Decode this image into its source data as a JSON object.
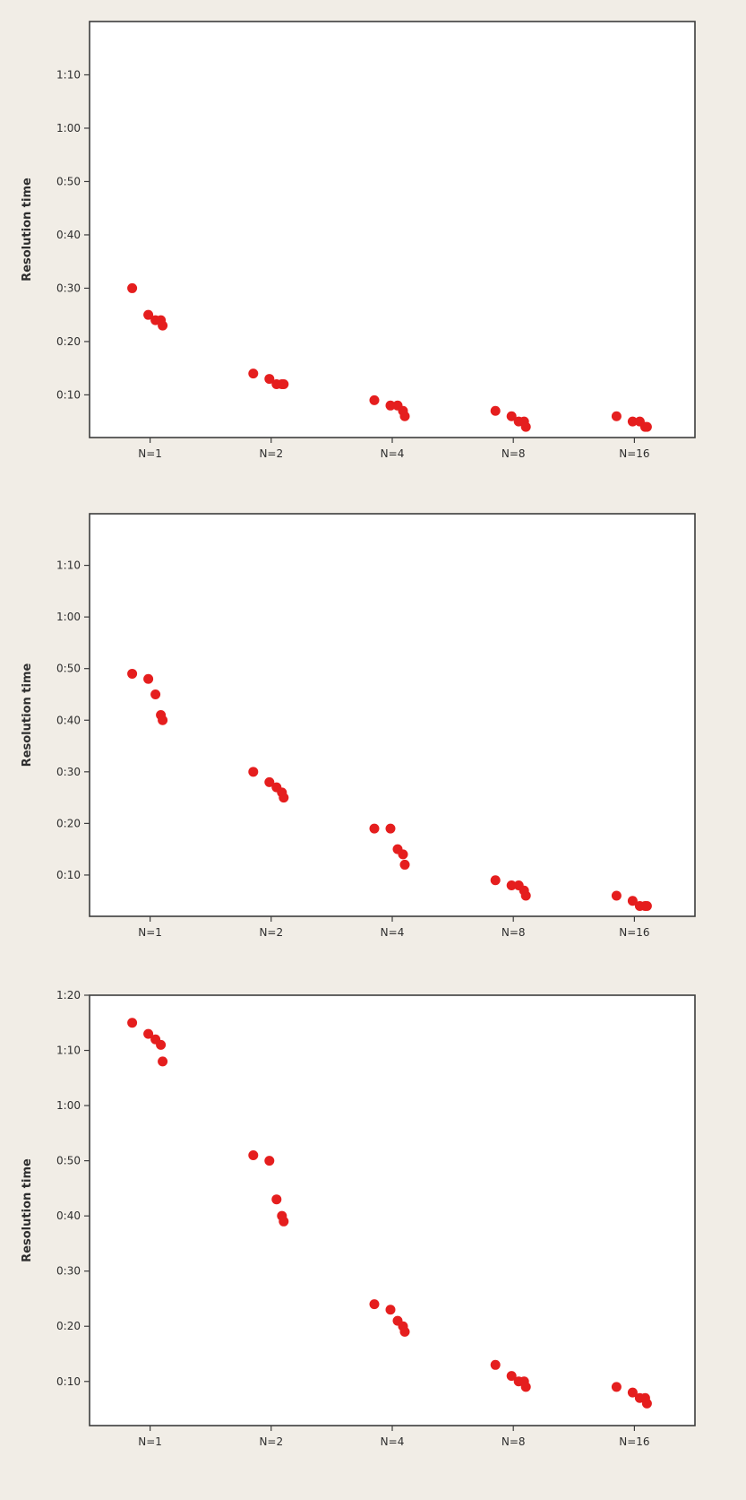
{
  "colors": {
    "point": "#e51e1e",
    "background": "#f1ede6",
    "plot_background": "#ffffff",
    "axis": "#3d3d3d"
  },
  "chart_data": [
    {
      "type": "scatter",
      "ylabel": "Resolution time",
      "y_unit": "seconds",
      "categories": [
        "N=1",
        "N=2",
        "N=4",
        "N=8",
        "N=16"
      ],
      "y_ticks": [
        10,
        20,
        30,
        40,
        50,
        60,
        70
      ],
      "y_tick_labels": [
        "0:10",
        "0:20",
        "0:30",
        "0:40",
        "0:50",
        "1:00",
        "1:10"
      ],
      "ylim": [
        2,
        80
      ],
      "grid": false,
      "points": [
        {
          "category": "N=1",
          "y": 30
        },
        {
          "category": "N=1",
          "y": 25
        },
        {
          "category": "N=1",
          "y": 24
        },
        {
          "category": "N=1",
          "y": 24
        },
        {
          "category": "N=1",
          "y": 23
        },
        {
          "category": "N=2",
          "y": 14
        },
        {
          "category": "N=2",
          "y": 13
        },
        {
          "category": "N=2",
          "y": 12
        },
        {
          "category": "N=2",
          "y": 12
        },
        {
          "category": "N=2",
          "y": 12
        },
        {
          "category": "N=4",
          "y": 9
        },
        {
          "category": "N=4",
          "y": 8
        },
        {
          "category": "N=4",
          "y": 8
        },
        {
          "category": "N=4",
          "y": 7
        },
        {
          "category": "N=4",
          "y": 6
        },
        {
          "category": "N=8",
          "y": 7
        },
        {
          "category": "N=8",
          "y": 6
        },
        {
          "category": "N=8",
          "y": 5
        },
        {
          "category": "N=8",
          "y": 5
        },
        {
          "category": "N=8",
          "y": 4
        },
        {
          "category": "N=16",
          "y": 6
        },
        {
          "category": "N=16",
          "y": 5
        },
        {
          "category": "N=16",
          "y": 5
        },
        {
          "category": "N=16",
          "y": 4
        },
        {
          "category": "N=16",
          "y": 4
        }
      ]
    },
    {
      "type": "scatter",
      "ylabel": "Resolution time",
      "y_unit": "seconds",
      "categories": [
        "N=1",
        "N=2",
        "N=4",
        "N=8",
        "N=16"
      ],
      "y_ticks": [
        10,
        20,
        30,
        40,
        50,
        60,
        70
      ],
      "y_tick_labels": [
        "0:10",
        "0:20",
        "0:30",
        "0:40",
        "0:50",
        "1:00",
        "1:10"
      ],
      "ylim": [
        2,
        80
      ],
      "grid": false,
      "points": [
        {
          "category": "N=1",
          "y": 49
        },
        {
          "category": "N=1",
          "y": 48
        },
        {
          "category": "N=1",
          "y": 45
        },
        {
          "category": "N=1",
          "y": 41
        },
        {
          "category": "N=1",
          "y": 40
        },
        {
          "category": "N=2",
          "y": 30
        },
        {
          "category": "N=2",
          "y": 28
        },
        {
          "category": "N=2",
          "y": 27
        },
        {
          "category": "N=2",
          "y": 26
        },
        {
          "category": "N=2",
          "y": 25
        },
        {
          "category": "N=4",
          "y": 19
        },
        {
          "category": "N=4",
          "y": 19
        },
        {
          "category": "N=4",
          "y": 15
        },
        {
          "category": "N=4",
          "y": 14
        },
        {
          "category": "N=4",
          "y": 12
        },
        {
          "category": "N=8",
          "y": 9
        },
        {
          "category": "N=8",
          "y": 8
        },
        {
          "category": "N=8",
          "y": 8
        },
        {
          "category": "N=8",
          "y": 7
        },
        {
          "category": "N=8",
          "y": 6
        },
        {
          "category": "N=16",
          "y": 6
        },
        {
          "category": "N=16",
          "y": 5
        },
        {
          "category": "N=16",
          "y": 4
        },
        {
          "category": "N=16",
          "y": 4
        },
        {
          "category": "N=16",
          "y": 4
        }
      ]
    },
    {
      "type": "scatter",
      "ylabel": "Resolution time",
      "y_unit": "seconds",
      "categories": [
        "N=1",
        "N=2",
        "N=4",
        "N=8",
        "N=16"
      ],
      "y_ticks": [
        10,
        20,
        30,
        40,
        50,
        60,
        70,
        80
      ],
      "y_tick_labels": [
        "0:10",
        "0:20",
        "0:30",
        "0:40",
        "0:50",
        "1:00",
        "1:10",
        "1:20"
      ],
      "ylim": [
        2,
        80
      ],
      "grid": false,
      "points": [
        {
          "category": "N=1",
          "y": 75
        },
        {
          "category": "N=1",
          "y": 73
        },
        {
          "category": "N=1",
          "y": 72
        },
        {
          "category": "N=1",
          "y": 71
        },
        {
          "category": "N=1",
          "y": 68
        },
        {
          "category": "N=2",
          "y": 51
        },
        {
          "category": "N=2",
          "y": 50
        },
        {
          "category": "N=2",
          "y": 43
        },
        {
          "category": "N=2",
          "y": 40
        },
        {
          "category": "N=2",
          "y": 39
        },
        {
          "category": "N=4",
          "y": 24
        },
        {
          "category": "N=4",
          "y": 23
        },
        {
          "category": "N=4",
          "y": 21
        },
        {
          "category": "N=4",
          "y": 20
        },
        {
          "category": "N=4",
          "y": 19
        },
        {
          "category": "N=8",
          "y": 13
        },
        {
          "category": "N=8",
          "y": 11
        },
        {
          "category": "N=8",
          "y": 10
        },
        {
          "category": "N=8",
          "y": 10
        },
        {
          "category": "N=8",
          "y": 9
        },
        {
          "category": "N=16",
          "y": 9
        },
        {
          "category": "N=16",
          "y": 8
        },
        {
          "category": "N=16",
          "y": 7
        },
        {
          "category": "N=16",
          "y": 7
        },
        {
          "category": "N=16",
          "y": 6
        }
      ]
    }
  ]
}
